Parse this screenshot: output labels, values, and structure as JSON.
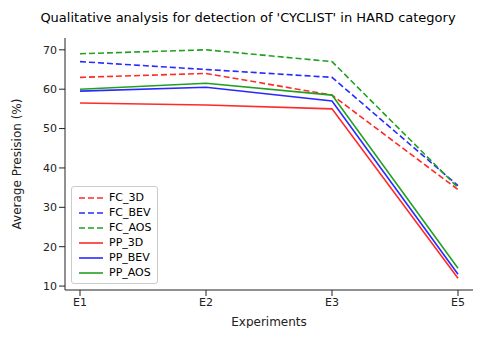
{
  "chart_data": {
    "type": "line",
    "title": "Qualitative analysis for detection of 'CYCLIST' in HARD category",
    "x_label": "Experiments",
    "y_label": "Average Presision (%)",
    "categories": [
      "E1",
      "E2",
      "E3",
      "E5"
    ],
    "series": [
      {
        "name": "FC_3D",
        "color": "#ff2a2a",
        "line_style": "dashed",
        "values": [
          63,
          64,
          58.5,
          34.5
        ]
      },
      {
        "name": "FC_BEV",
        "color": "#2a2aff",
        "line_style": "dashed",
        "values": [
          67,
          65,
          63,
          35.5
        ]
      },
      {
        "name": "FC_AOS",
        "color": "#22a022",
        "line_style": "dashed",
        "values": [
          69,
          70,
          67,
          35
        ]
      },
      {
        "name": "PP_3D",
        "color": "#ff2a2a",
        "line_style": "solid",
        "values": [
          56.5,
          56,
          55,
          12
        ]
      },
      {
        "name": "PP_BEV",
        "color": "#2a2aff",
        "line_style": "solid",
        "values": [
          59.5,
          60.5,
          57,
          13
        ]
      },
      {
        "name": "PP_AOS",
        "color": "#22a022",
        "line_style": "solid",
        "values": [
          60,
          61.5,
          58.5,
          14.5
        ]
      }
    ],
    "ylim": [
      9,
      73
    ],
    "yticks": [
      10,
      20,
      30,
      40,
      50,
      60,
      70
    ],
    "legend": "lower left",
    "grid": false
  }
}
